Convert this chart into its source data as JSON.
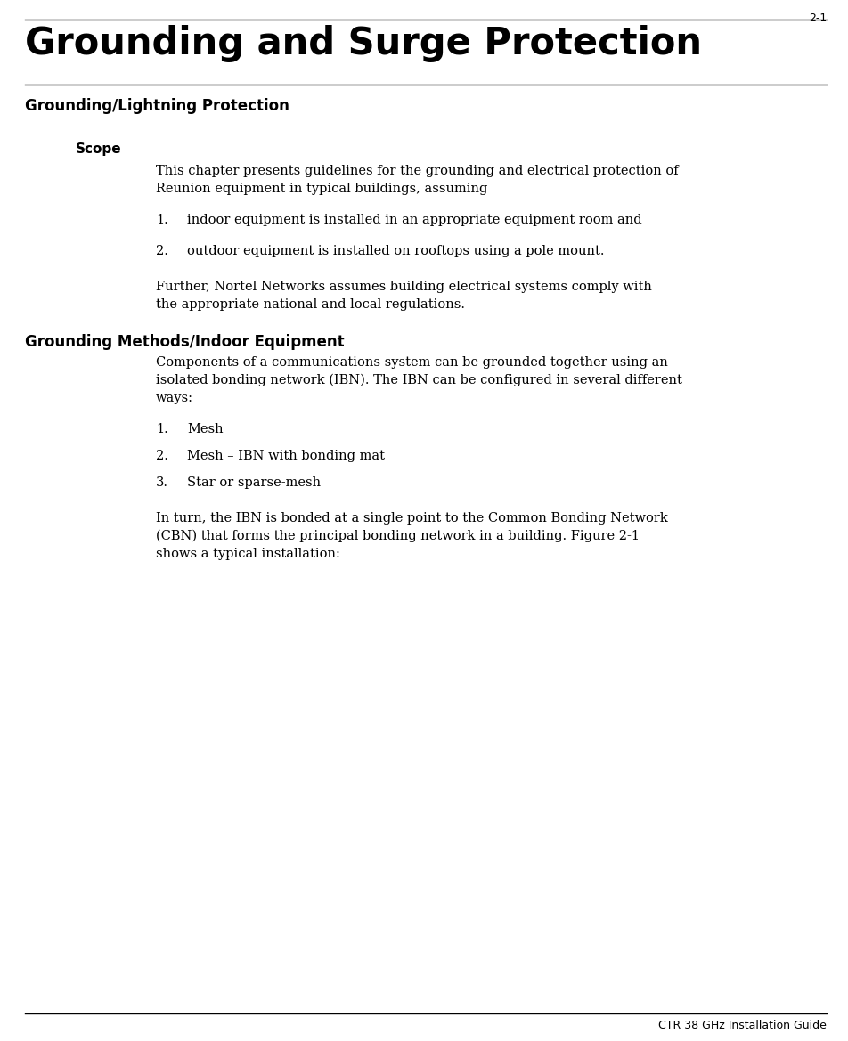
{
  "page_number": "2-1",
  "footer_text": "CTR 38 GHz Installation Guide",
  "chapter_title": "Grounding and Surge Protection",
  "section1_heading": "Grounding/Lightning Protection",
  "subsection1_heading": "Scope",
  "scope_line1": "This chapter presents guidelines for the grounding and electrical protection of",
  "scope_line2": "Reunion equipment in typical buildings, assuming",
  "scope_list": [
    "indoor equipment is installed in an appropriate equipment room and",
    "outdoor equipment is installed on rooftops using a pole mount."
  ],
  "scope_further1": "Further, Nortel Networks assumes building electrical systems comply with",
  "scope_further2": "the appropriate national and local regulations.",
  "section2_heading": "Grounding Methods/Indoor Equipment",
  "grounding_line1": "Components of a communications system can be grounded together using an",
  "grounding_line2": "isolated bonding network (IBN). The IBN can be configured in several different",
  "grounding_line3": "ways:",
  "grounding_list": [
    "Mesh",
    "Mesh – IBN with bonding mat",
    "Star or sparse-mesh"
  ],
  "final_line1": "In turn, the IBN is bonded at a single point to the Common Bonding Network",
  "final_line2": "(CBN) that forms the principal bonding network in a building. Figure 2-1",
  "final_line3": "shows a typical installation:",
  "bg_color": "#ffffff",
  "text_color": "#000000"
}
